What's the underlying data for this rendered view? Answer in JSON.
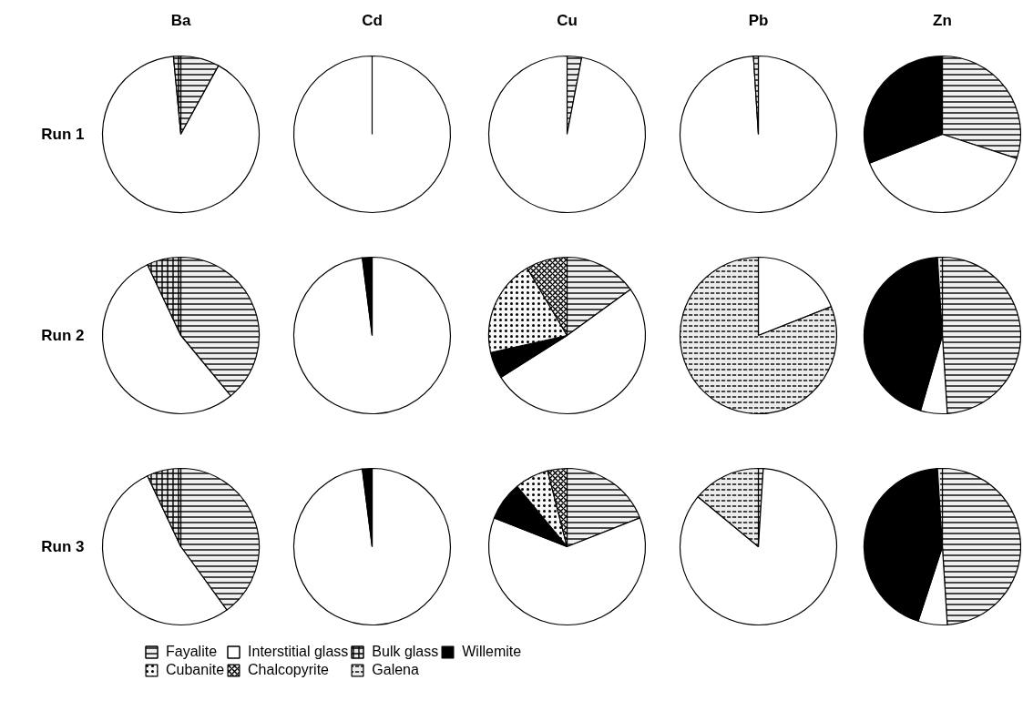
{
  "chart_data": [
    {
      "type": "pie",
      "legend": "bottom",
      "title": "Ba",
      "ylabel": "Run 1",
      "categories": [
        "Fayalite",
        "Interstitial glass",
        "Bulk glass",
        "Willemite",
        "Cubanite",
        "Chalcopyrite",
        "Galena"
      ],
      "values": [
        8,
        90.5,
        1.5,
        0,
        0,
        0,
        0
      ],
      "colors": [
        "#f0f0f0",
        "#ffffff",
        "#e8e8e8",
        "#000000",
        "#f8f8f8",
        "#f4f4f4",
        "#ececec"
      ]
    },
    {
      "type": "pie",
      "title": "Cd",
      "categories": [
        null,
        null,
        null,
        null,
        null,
        null,
        null
      ],
      "values": [
        0,
        100,
        0,
        0,
        0,
        0,
        0
      ],
      "colors": [
        "#f0f0f0",
        "#ffffff",
        "#e8e8e8",
        "#000000",
        "#f8f8f8",
        "#f4f4f4",
        "#ececec"
      ]
    },
    {
      "type": "pie",
      "title": "Cu",
      "categories": [
        null,
        null,
        null,
        null,
        null,
        null,
        null
      ],
      "values": [
        3,
        97,
        0,
        0,
        0,
        0,
        0
      ],
      "colors": [
        "#f0f0f0",
        "#ffffff",
        "#e8e8e8",
        "#000000",
        "#f8f8f8",
        "#f4f4f4",
        "#ececec"
      ]
    },
    {
      "type": "pie",
      "title": "Pb",
      "categories": [
        null,
        null,
        null,
        null,
        null,
        null,
        null
      ],
      "values": [
        0,
        99,
        0,
        0,
        0,
        0,
        1
      ],
      "colors": [
        "#f0f0f0",
        "#ffffff",
        "#e8e8e8",
        "#000000",
        "#f8f8f8",
        "#f4f4f4",
        "#ececec"
      ]
    },
    {
      "type": "pie",
      "title": "Zn",
      "categories": [
        null,
        null,
        null,
        null,
        null,
        null,
        null
      ],
      "values": [
        30,
        39,
        0,
        31,
        0,
        0,
        0
      ],
      "colors": [
        "#f0f0f0",
        "#ffffff",
        "#e8e8e8",
        "#000000",
        "#f8f8f8",
        "#f4f4f4",
        "#ececec"
      ]
    },
    {
      "type": "pie",
      "ylabel": "Run 2",
      "categories": [
        null,
        null,
        null,
        null,
        null,
        null,
        null
      ],
      "values": [
        39,
        54,
        7,
        0,
        0,
        0,
        0
      ],
      "colors": [
        "#f0f0f0",
        "#ffffff",
        "#e8e8e8",
        "#000000",
        "#f8f8f8",
        "#f4f4f4",
        "#ececec"
      ]
    },
    {
      "type": "pie",
      "categories": [
        null,
        null,
        null,
        null,
        null,
        null,
        null
      ],
      "values": [
        0,
        98,
        0,
        2,
        0,
        0,
        0
      ],
      "colors": [
        "#f0f0f0",
        "#ffffff",
        "#e8e8e8",
        "#000000",
        "#f8f8f8",
        "#f4f4f4",
        "#ececec"
      ]
    },
    {
      "type": "pie",
      "categories": [
        null,
        null,
        null,
        null,
        null,
        null,
        null
      ],
      "values": [
        15,
        51,
        0,
        5.5,
        20,
        8.5,
        0
      ],
      "colors": [
        "#f0f0f0",
        "#ffffff",
        "#e8e8e8",
        "#000000",
        "#f8f8f8",
        "#f4f4f4",
        "#ececec"
      ]
    },
    {
      "type": "pie",
      "categories": [
        null,
        null,
        null,
        null,
        null,
        null,
        null
      ],
      "values": [
        0,
        19,
        0,
        0,
        0,
        0,
        81
      ],
      "colors": [
        "#f0f0f0",
        "#ffffff",
        "#e8e8e8",
        "#000000",
        "#f8f8f8",
        "#f4f4f4",
        "#ececec"
      ]
    },
    {
      "type": "pie",
      "categories": [
        null,
        null,
        null,
        null,
        null,
        null,
        null
      ],
      "values": [
        49,
        5.5,
        0,
        44.5,
        0,
        0,
        1
      ],
      "colors": [
        "#f0f0f0",
        "#ffffff",
        "#e8e8e8",
        "#000000",
        "#f8f8f8",
        "#f4f4f4",
        "#ececec"
      ]
    },
    {
      "type": "pie",
      "ylabel": "Run 3",
      "categories": [
        null,
        null,
        null,
        null,
        null,
        null,
        null
      ],
      "values": [
        40,
        53,
        7,
        0,
        0,
        0,
        0
      ],
      "colors": [
        "#f0f0f0",
        "#ffffff",
        "#e8e8e8",
        "#000000",
        "#f8f8f8",
        "#f4f4f4",
        "#ececec"
      ]
    },
    {
      "type": "pie",
      "categories": [
        null,
        null,
        null,
        null,
        null,
        null,
        null
      ],
      "values": [
        0,
        98,
        0,
        2,
        0,
        0,
        0
      ],
      "colors": [
        "#f0f0f0",
        "#ffffff",
        "#e8e8e8",
        "#000000",
        "#f8f8f8",
        "#f4f4f4",
        "#ececec"
      ]
    },
    {
      "type": "pie",
      "categories": [
        null,
        null,
        null,
        null,
        null,
        null,
        null
      ],
      "values": [
        19,
        62,
        0,
        8,
        7,
        4,
        0
      ],
      "colors": [
        "#f0f0f0",
        "#ffffff",
        "#e8e8e8",
        "#000000",
        "#f8f8f8",
        "#f4f4f4",
        "#ececec"
      ]
    },
    {
      "type": "pie",
      "categories": [
        null,
        null,
        null,
        null,
        null,
        null,
        null
      ],
      "values": [
        1,
        85,
        0,
        0,
        0,
        0,
        14
      ],
      "colors": [
        "#f0f0f0",
        "#ffffff",
        "#e8e8e8",
        "#000000",
        "#f8f8f8",
        "#f4f4f4",
        "#ececec"
      ]
    },
    {
      "type": "pie",
      "categories": [
        null,
        null,
        null,
        null,
        null,
        null,
        null
      ],
      "values": [
        49,
        6,
        0,
        44,
        0,
        0,
        1
      ],
      "colors": [
        "#f0f0f0",
        "#ffffff",
        "#e8e8e8",
        "#000000",
        "#f8f8f8",
        "#f4f4f4",
        "#ececec"
      ]
    }
  ]
}
